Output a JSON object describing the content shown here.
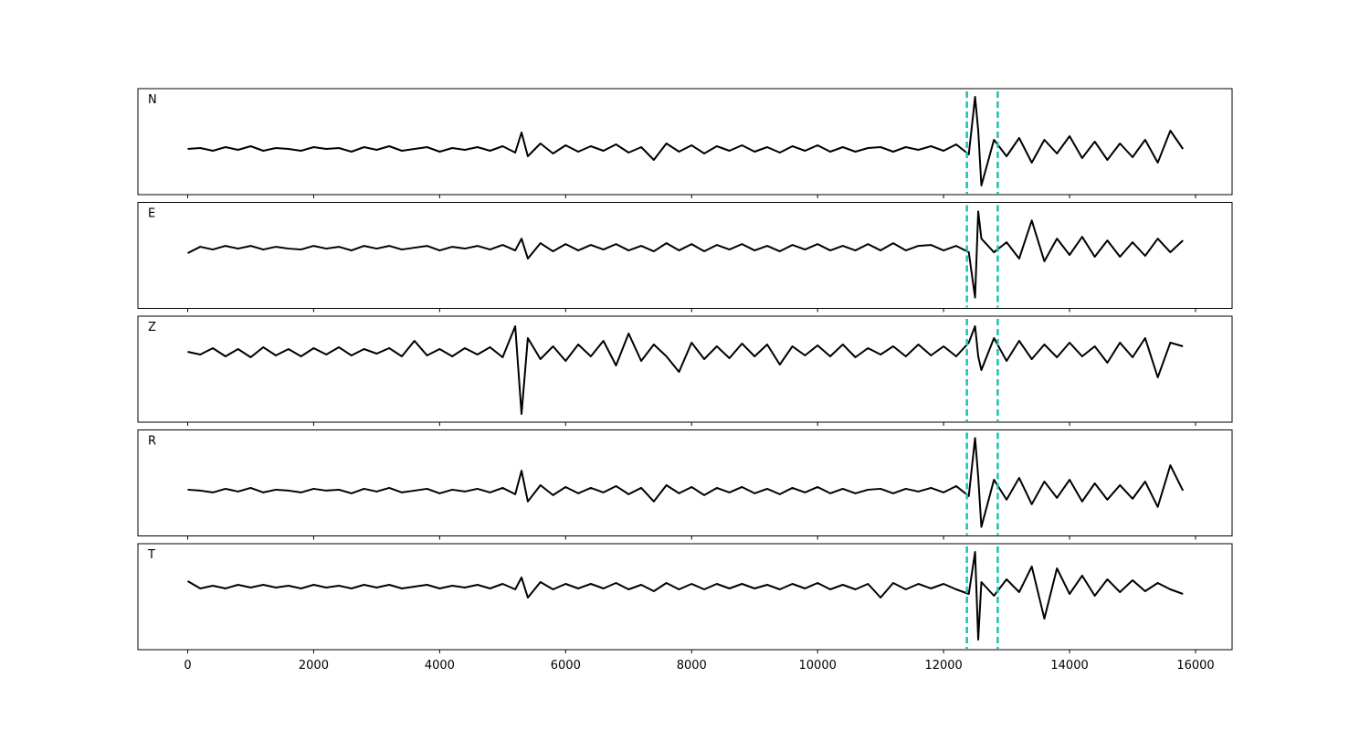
{
  "chart_data": {
    "type": "line",
    "x": [
      0,
      200,
      400,
      600,
      800,
      1000,
      1200,
      1400,
      1600,
      1800,
      2000,
      2200,
      2400,
      2600,
      2800,
      3000,
      3200,
      3400,
      3600,
      3800,
      4000,
      4200,
      4400,
      4600,
      4800,
      5000,
      5200,
      5300,
      5400,
      5600,
      5800,
      6000,
      6200,
      6400,
      6600,
      6800,
      7000,
      7200,
      7400,
      7600,
      7800,
      8000,
      8200,
      8400,
      8600,
      8800,
      9000,
      9200,
      9400,
      9600,
      9800,
      10000,
      10200,
      10400,
      10600,
      10800,
      11000,
      11200,
      11400,
      11600,
      11800,
      12000,
      12200,
      12400,
      12500,
      12550,
      12600,
      12800,
      13000,
      13200,
      13400,
      13600,
      13800,
      14000,
      14200,
      14400,
      14600,
      14800,
      15000,
      15200,
      15400,
      15600,
      15800
    ],
    "xlim": [
      -790,
      16580
    ],
    "xticks": [
      0,
      2000,
      4000,
      6000,
      8000,
      10000,
      12000,
      14000,
      16000
    ],
    "color": "#000000",
    "vlines": {
      "values": [
        12370,
        12860
      ],
      "color": "#17c3b2"
    },
    "panels": [
      {
        "label": "N",
        "ylim": [
          -50,
          66
        ],
        "values": [
          0,
          1,
          -2,
          2,
          -1,
          3,
          -2,
          1,
          0,
          -2,
          2,
          0,
          1,
          -3,
          2,
          -1,
          3,
          -2,
          0,
          2,
          -3,
          1,
          -1,
          2,
          -2,
          3,
          -4,
          18,
          -8,
          6,
          -5,
          4,
          -3,
          3,
          -2,
          5,
          -4,
          2,
          -12,
          6,
          -3,
          4,
          -5,
          3,
          -2,
          4,
          -3,
          2,
          -4,
          3,
          -2,
          4,
          -3,
          2,
          -3,
          1,
          2,
          -3,
          2,
          -1,
          3,
          -2,
          5,
          -6,
          57,
          20,
          -40,
          10,
          -8,
          12,
          -15,
          10,
          -5,
          14,
          -10,
          8,
          -12,
          6,
          -9,
          10,
          -15,
          20,
          0
        ]
      },
      {
        "label": "E",
        "ylim": [
          -67,
          50
        ],
        "values": [
          -6,
          1,
          -2,
          2,
          -1,
          2,
          -2,
          1,
          -1,
          -2,
          2,
          -1,
          1,
          -3,
          2,
          -1,
          2,
          -2,
          0,
          2,
          -3,
          1,
          -1,
          2,
          -2,
          3,
          -3,
          10,
          -12,
          5,
          -4,
          4,
          -3,
          3,
          -2,
          4,
          -3,
          2,
          -4,
          5,
          -3,
          4,
          -4,
          3,
          -2,
          4,
          -3,
          2,
          -4,
          3,
          -2,
          4,
          -3,
          2,
          -3,
          4,
          -3,
          5,
          -3,
          2,
          3,
          -3,
          2,
          -5,
          -55,
          40,
          10,
          -5,
          6,
          -12,
          30,
          -15,
          10,
          -8,
          12,
          -10,
          8,
          -10,
          6,
          -9,
          10,
          -5,
          8
        ]
      },
      {
        "label": "Z",
        "ylim": [
          -77,
          39
        ],
        "values": [
          0,
          -3,
          4,
          -5,
          3,
          -6,
          5,
          -4,
          3,
          -5,
          4,
          -3,
          5,
          -4,
          3,
          -2,
          4,
          -5,
          12,
          -4,
          3,
          -5,
          4,
          -3,
          5,
          -6,
          28,
          -68,
          15,
          -8,
          6,
          -10,
          8,
          -5,
          12,
          -15,
          20,
          -10,
          8,
          -5,
          -22,
          10,
          -8,
          6,
          -7,
          9,
          -5,
          8,
          -14,
          6,
          -4,
          7,
          -5,
          8,
          -6,
          4,
          -3,
          6,
          -5,
          8,
          -4,
          6,
          -5,
          10,
          28,
          -5,
          -20,
          15,
          -10,
          12,
          -8,
          8,
          -6,
          10,
          -5,
          6,
          -12,
          10,
          -6,
          15,
          -28,
          10,
          6
        ]
      },
      {
        "label": "R",
        "ylim": [
          -50,
          67
        ],
        "values": [
          1,
          0,
          -2,
          2,
          -1,
          3,
          -2,
          1,
          0,
          -2,
          2,
          0,
          1,
          -3,
          2,
          -1,
          3,
          -2,
          0,
          2,
          -3,
          1,
          -1,
          2,
          -2,
          3,
          -4,
          22,
          -12,
          6,
          -5,
          4,
          -3,
          3,
          -2,
          5,
          -4,
          3,
          -12,
          6,
          -3,
          4,
          -5,
          3,
          -2,
          4,
          -3,
          2,
          -4,
          3,
          -2,
          4,
          -3,
          2,
          -3,
          1,
          2,
          -3,
          2,
          -1,
          3,
          -2,
          5,
          -6,
          58,
          15,
          -40,
          12,
          -10,
          14,
          -15,
          10,
          -8,
          12,
          -12,
          8,
          -10,
          6,
          -9,
          10,
          -18,
          28,
          0
        ]
      },
      {
        "label": "T",
        "ylim": [
          -69,
          47
        ],
        "values": [
          6,
          -2,
          1,
          -2,
          2,
          -1,
          2,
          -1,
          1,
          -2,
          2,
          -1,
          1,
          -2,
          2,
          -1,
          2,
          -2,
          0,
          2,
          -2,
          1,
          -1,
          2,
          -2,
          3,
          -3,
          10,
          -12,
          5,
          -3,
          3,
          -2,
          3,
          -2,
          4,
          -3,
          2,
          -5,
          4,
          -3,
          3,
          -3,
          3,
          -2,
          3,
          -2,
          2,
          -3,
          3,
          -2,
          4,
          -3,
          2,
          -3,
          3,
          -12,
          4,
          -3,
          3,
          -2,
          3,
          -3,
          -8,
          38,
          -58,
          5,
          -10,
          8,
          -6,
          22,
          -35,
          20,
          -8,
          12,
          -10,
          8,
          -6,
          7,
          -5,
          4,
          -3,
          -8
        ]
      }
    ]
  }
}
